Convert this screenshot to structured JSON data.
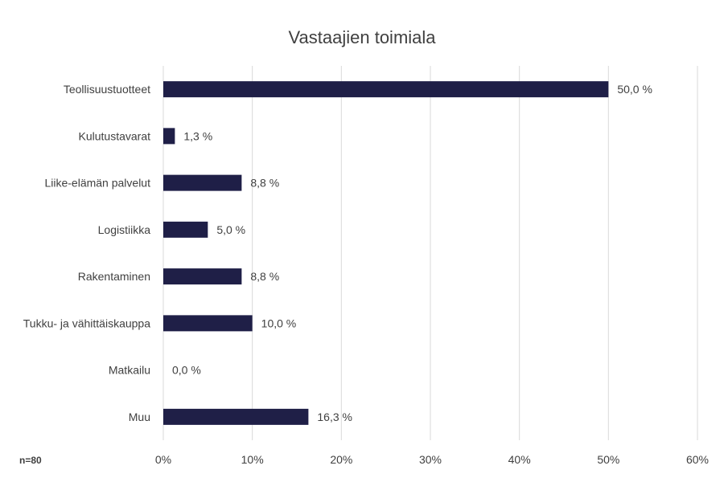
{
  "chart_data": {
    "type": "bar",
    "orientation": "horizontal",
    "title": "Vastaajien toimiala",
    "categories": [
      "Teollisuustuotteet",
      "Kulutustavarat",
      "Liike-elämän palvelut",
      "Logistiikka",
      "Rakentaminen",
      "Tukku- ja vähittäiskauppa",
      "Matkailu",
      "Muu"
    ],
    "values": [
      50.0,
      1.3,
      8.8,
      5.0,
      8.8,
      10.0,
      0.0,
      16.3
    ],
    "value_labels": [
      "50,0 %",
      "1,3 %",
      "8,8 %",
      "5,0 %",
      "8,8 %",
      "10,0 %",
      "0,0 %",
      "16,3 %"
    ],
    "xlim": [
      0,
      60
    ],
    "xticks": [
      0,
      10,
      20,
      30,
      40,
      50,
      60
    ],
    "xtick_labels": [
      "0%",
      "10%",
      "20%",
      "30%",
      "40%",
      "50%",
      "60%"
    ],
    "grid": "vertical",
    "bar_color": "#1f1f47",
    "grid_color": "#d9d9d9"
  },
  "note": "n=80"
}
